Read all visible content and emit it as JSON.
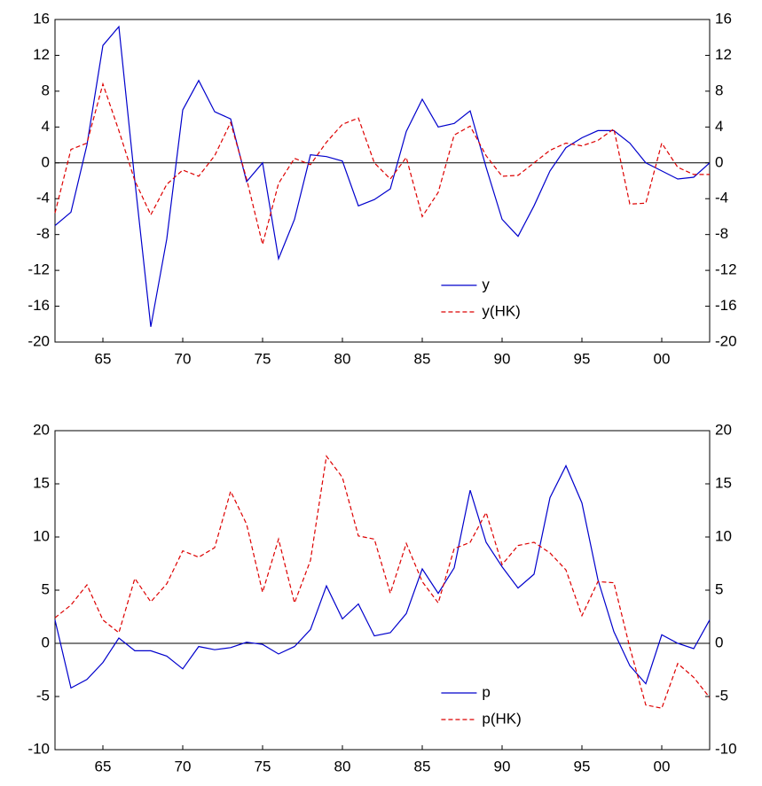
{
  "chart_data": [
    {
      "type": "line",
      "categories": [
        null,
        null,
        null,
        "65",
        null,
        null,
        null,
        null,
        "70",
        null,
        null,
        null,
        null,
        "75",
        null,
        null,
        null,
        null,
        "80",
        null,
        null,
        null,
        null,
        "85",
        null,
        null,
        null,
        null,
        "90",
        null,
        null,
        null,
        null,
        "95",
        null,
        null,
        null,
        null,
        "00",
        null,
        null,
        null
      ],
      "series": [
        {
          "name": "y",
          "color": "#0000cc",
          "dash": "solid",
          "values": [
            -7,
            -5.5,
            2,
            13.1,
            15.2,
            -2,
            -18.3,
            -8.5,
            5.9,
            9.2,
            5.7,
            4.9,
            -2.1,
            0,
            -10.7,
            -6.3,
            0.9,
            0.7,
            0.2,
            -4.8,
            -4.1,
            -2.9,
            3.5,
            7.1,
            4,
            4.4,
            5.8,
            -0.5,
            -6.3,
            -8.2,
            -4.8,
            -0.9,
            1.7,
            2.8,
            3.6,
            3.6,
            2.2,
            0,
            -0.9,
            -1.8,
            -1.6,
            0
          ]
        },
        {
          "name": "y(HK)",
          "color": "#dd0000",
          "dash": "dashed",
          "values": [
            -5.6,
            1.5,
            2.2,
            8.8,
            3.6,
            -2,
            -5.8,
            -2.4,
            -0.8,
            -1.5,
            0.8,
            4.5,
            -1.8,
            -9.1,
            -2.3,
            0.5,
            -0.2,
            2.3,
            4.3,
            5,
            0,
            -1.8,
            0.6,
            -6,
            -3.3,
            3.1,
            4.1,
            0.8,
            -1.5,
            -1.4,
            0,
            1.4,
            2.2,
            1.9,
            2.5,
            3.8,
            -4.6,
            -4.5,
            2.2,
            -0.5,
            -1.3,
            -1.3
          ]
        }
      ],
      "ylim": [
        -20,
        16
      ],
      "yticks": [
        -20,
        -16,
        -12,
        -8,
        -4,
        0,
        4,
        8,
        12,
        16
      ],
      "y2lim": [
        -20,
        16
      ],
      "y2ticks": [
        -20,
        -16,
        -12,
        -8,
        -4,
        0,
        4,
        8,
        12,
        16
      ],
      "zero_line": true,
      "grid": false,
      "legend": "bottom-center"
    },
    {
      "type": "line",
      "categories": [
        null,
        null,
        null,
        "65",
        null,
        null,
        null,
        null,
        "70",
        null,
        null,
        null,
        null,
        "75",
        null,
        null,
        null,
        null,
        "80",
        null,
        null,
        null,
        null,
        "85",
        null,
        null,
        null,
        null,
        "90",
        null,
        null,
        null,
        null,
        "95",
        null,
        null,
        null,
        null,
        "00",
        null,
        null,
        null
      ],
      "series": [
        {
          "name": "p",
          "color": "#0000cc",
          "dash": "solid",
          "values": [
            2.2,
            -4.2,
            -3.4,
            -1.8,
            0.5,
            -0.7,
            -0.7,
            -1.2,
            -2.4,
            -0.3,
            -0.6,
            -0.4,
            0.1,
            -0.1,
            -1,
            -0.3,
            1.3,
            5.4,
            2.3,
            3.7,
            0.7,
            1,
            2.8,
            7,
            4.7,
            7.1,
            14.4,
            9.5,
            7.2,
            5.2,
            6.5,
            13.7,
            16.7,
            13.2,
            6,
            1.1,
            -2.1,
            -3.8,
            0.8,
            0,
            -0.5,
            2.2
          ]
        },
        {
          "name": "p(HK)",
          "color": "#dd0000",
          "dash": "dashed",
          "values": [
            2.4,
            3.6,
            5.5,
            2.2,
            1,
            6.1,
            3.9,
            5.6,
            8.7,
            8.1,
            9,
            14.3,
            11.2,
            4.8,
            9.8,
            3.8,
            7.8,
            17.6,
            15.6,
            10.1,
            9.8,
            4.7,
            9.4,
            5.8,
            3.8,
            8.9,
            9.5,
            12.3,
            7.4,
            9.2,
            9.5,
            8.5,
            6.9,
            2.6,
            5.8,
            5.7,
            -0.4,
            -5.8,
            -6.1,
            -1.9,
            -3.2,
            -5.1
          ]
        }
      ],
      "ylim": [
        -10,
        20
      ],
      "yticks": [
        -10,
        -5,
        0,
        5,
        10,
        15,
        20
      ],
      "y2lim": [
        -10,
        20
      ],
      "y2ticks": [
        -10,
        -5,
        0,
        5,
        10,
        15,
        20
      ],
      "zero_line": true,
      "grid": false,
      "legend": "bottom-center"
    }
  ]
}
